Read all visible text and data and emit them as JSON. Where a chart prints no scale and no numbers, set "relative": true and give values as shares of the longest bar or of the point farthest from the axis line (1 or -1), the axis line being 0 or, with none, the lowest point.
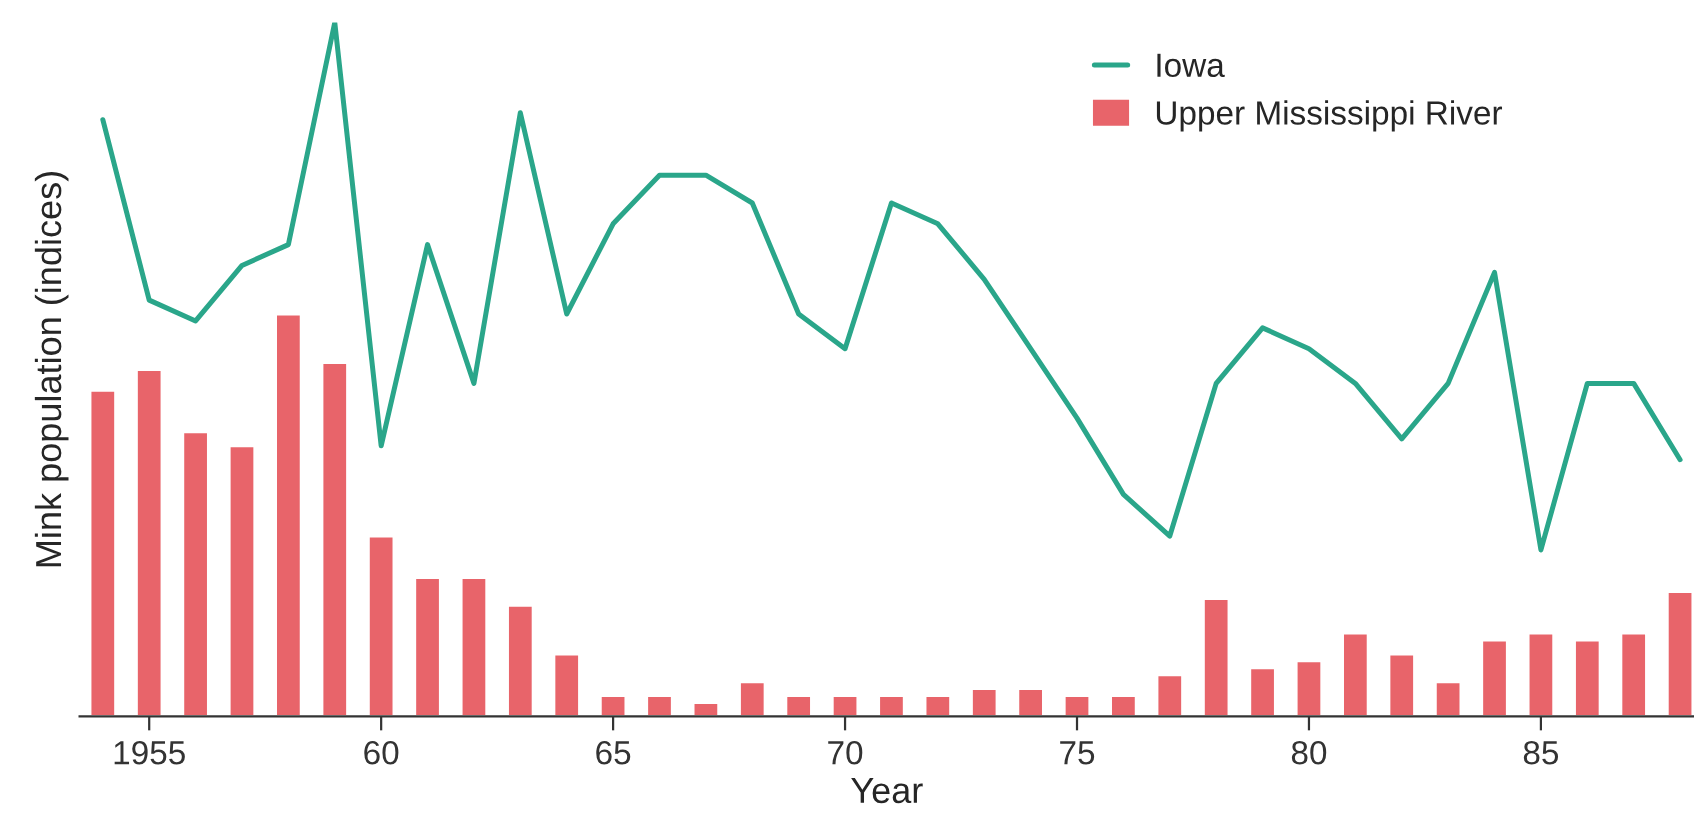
{
  "chart_data": {
    "type": "bar",
    "relative": true,
    "xlabel": "Year",
    "ylabel": "Mink population (indices)",
    "x": [
      1954,
      1955,
      1956,
      1957,
      1958,
      1959,
      1960,
      1961,
      1962,
      1963,
      1964,
      1965,
      1966,
      1967,
      1968,
      1969,
      1970,
      1971,
      1972,
      1973,
      1974,
      1975,
      1976,
      1977,
      1978,
      1979,
      1980,
      1981,
      1982,
      1983,
      1984,
      1985,
      1986,
      1987,
      1988
    ],
    "xlim": [
      1953.5,
      1988.3
    ],
    "xticks": [
      {
        "value": 1955,
        "label": "1955"
      },
      {
        "value": 1960,
        "label": "60"
      },
      {
        "value": 1965,
        "label": "65"
      },
      {
        "value": 1970,
        "label": "70"
      },
      {
        "value": 1975,
        "label": "75"
      },
      {
        "value": 1980,
        "label": "80"
      },
      {
        "value": 1985,
        "label": "85"
      }
    ],
    "series": [
      {
        "name": "Iowa",
        "type": "line",
        "color": "#2aa68a",
        "values": [
          0.86,
          0.6,
          0.57,
          0.65,
          0.68,
          1,
          0.39,
          0.68,
          0.48,
          0.87,
          0.58,
          0.71,
          0.78,
          0.78,
          0.74,
          0.58,
          0.53,
          0.74,
          0.71,
          0.63,
          0.53,
          0.43,
          0.32,
          0.26,
          0.48,
          0.56,
          0.53,
          0.48,
          0.4,
          0.48,
          0.64,
          0.24,
          0.48,
          0.48,
          0.37
        ]
      },
      {
        "name": "Upper Mississippi River",
        "color": "#e8646a",
        "values": [
          0.47,
          0.5,
          0.41,
          0.39,
          0.58,
          0.51,
          0.26,
          0.2,
          0.2,
          0.16,
          0.09,
          0.03,
          0.03,
          0.02,
          0.05,
          0.03,
          0.03,
          0.03,
          0.03,
          0.04,
          0.04,
          0.03,
          0.03,
          0.06,
          0.17,
          0.07,
          0.08,
          0.12,
          0.09,
          0.05,
          0.11,
          0.12,
          0.11,
          0.12,
          0.18
        ]
      }
    ],
    "legend": "top right",
    "grid": false
  }
}
